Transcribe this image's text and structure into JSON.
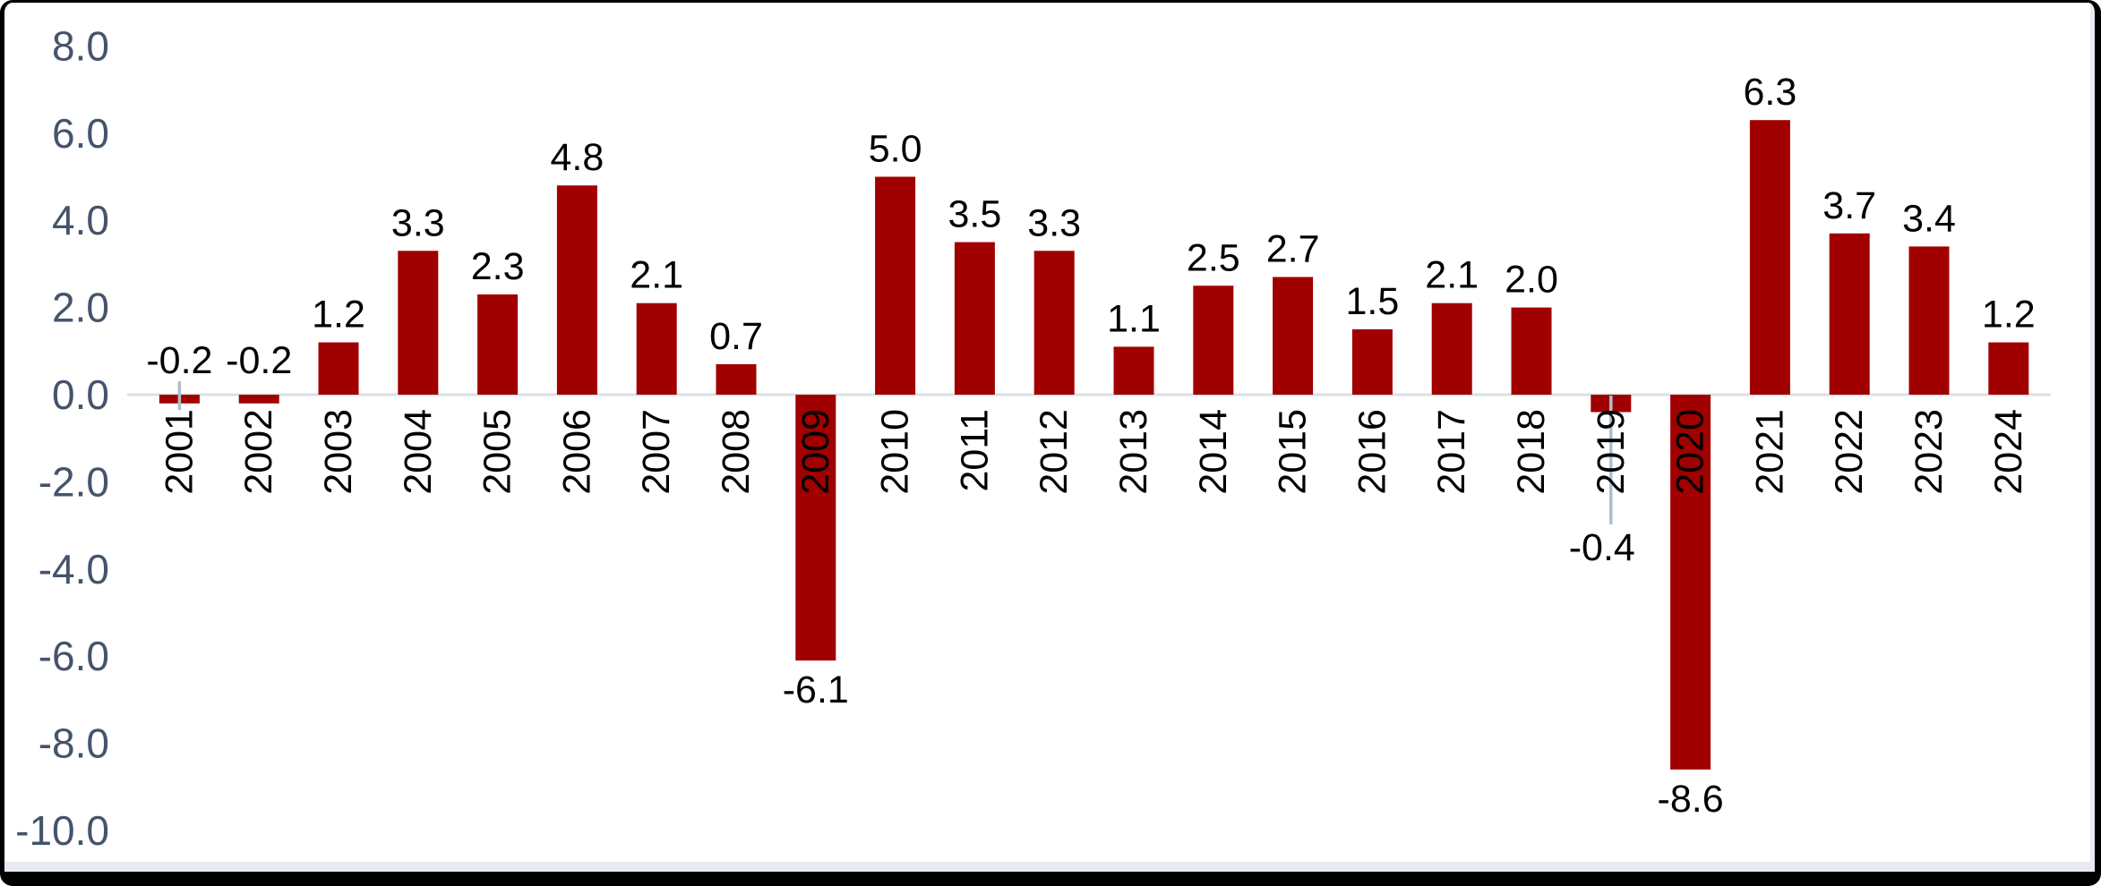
{
  "chart_data": {
    "type": "bar",
    "title": "",
    "xlabel": "",
    "ylabel": "",
    "categories": [
      "2001",
      "2002",
      "2003",
      "2004",
      "2005",
      "2006",
      "2007",
      "2008",
      "2009",
      "2010",
      "2011",
      "2012",
      "2013",
      "2014",
      "2015",
      "2016",
      "2017",
      "2018",
      "2019",
      "2020",
      "2021",
      "2022",
      "2023",
      "2024"
    ],
    "values": [
      -0.2,
      -0.2,
      1.2,
      3.3,
      2.3,
      4.8,
      2.1,
      0.7,
      -6.1,
      5.0,
      3.5,
      3.3,
      1.1,
      2.5,
      2.7,
      1.5,
      2.1,
      2.0,
      -0.4,
      -8.6,
      6.3,
      3.7,
      3.4,
      1.2
    ],
    "data_labels": [
      "-0.2",
      "-0.2",
      "1.2",
      "3.3",
      "2.3",
      "4.8",
      "2.1",
      "0.7",
      "-6.1",
      "5.0",
      "3.5",
      "3.3",
      "1.1",
      "2.5",
      "2.7",
      "1.5",
      "2.1",
      "2.0",
      "-0.4",
      "-8.6",
      "6.3",
      "3.7",
      "3.4",
      "1.2"
    ],
    "y_ticks": [
      "8.0",
      "6.0",
      "4.0",
      "2.0",
      "0.0",
      "-2.0",
      "-4.0",
      "-6.0",
      "-8.0",
      "-10.0"
    ],
    "ylim": [
      -10.0,
      8.0
    ],
    "grid": false,
    "legend": false,
    "colors": {
      "bar": "#A00000",
      "axis_line": "#DCE1E7",
      "y_tick_label": "#44546A",
      "data_label": "#000000",
      "x_category_label": "#000000",
      "leader_line": "#AEBECD",
      "background": "#FFFFFF"
    }
  }
}
